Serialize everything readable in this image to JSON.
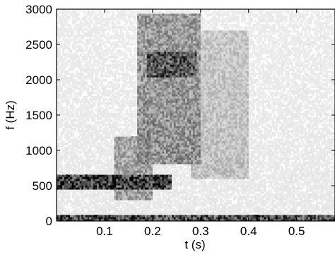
{
  "chart_data": {
    "type": "heatmap",
    "title": "",
    "xlabel": "t (s)",
    "ylabel": "f (Hz)",
    "xlim": [
      0,
      0.58
    ],
    "ylim": [
      0,
      3000
    ],
    "x_ticks": [
      0.1,
      0.2,
      0.3,
      0.4,
      0.5
    ],
    "x_tick_labels": [
      "0.1",
      "0.2",
      "0.3",
      "0.4",
      "0.5"
    ],
    "y_ticks": [
      0,
      500,
      1000,
      1500,
      2000,
      2500,
      3000
    ],
    "y_tick_labels": [
      "0",
      "500",
      "1000",
      "1500",
      "2000",
      "2500",
      "3000"
    ],
    "colormap": "grayscale (white = low intensity, black = high intensity)",
    "grid": false,
    "regions": [
      {
        "t": [
          0.0,
          0.58
        ],
        "f": [
          0,
          100
        ],
        "intensity": 0.85,
        "note": "low band near 0–100 Hz, strongest 0.0–0.31 s"
      },
      {
        "t": [
          0.0,
          0.24
        ],
        "f": [
          450,
          650
        ],
        "intensity": 0.95,
        "note": "band near 600 Hz"
      },
      {
        "t": [
          0.17,
          0.3
        ],
        "f": [
          800,
          2950
        ],
        "intensity": 0.55,
        "note": "vertical noisy energy"
      },
      {
        "t": [
          0.19,
          0.29
        ],
        "f": [
          2050,
          2400
        ],
        "intensity": 0.9,
        "note": "dark region near 2200 Hz"
      },
      {
        "t": [
          0.12,
          0.2
        ],
        "f": [
          300,
          1200
        ],
        "intensity": 0.45,
        "note": "scattered energy"
      },
      {
        "t": [
          0.28,
          0.4
        ],
        "f": [
          600,
          2700
        ],
        "intensity": 0.3,
        "note": "faint diffuse energy"
      }
    ]
  }
}
